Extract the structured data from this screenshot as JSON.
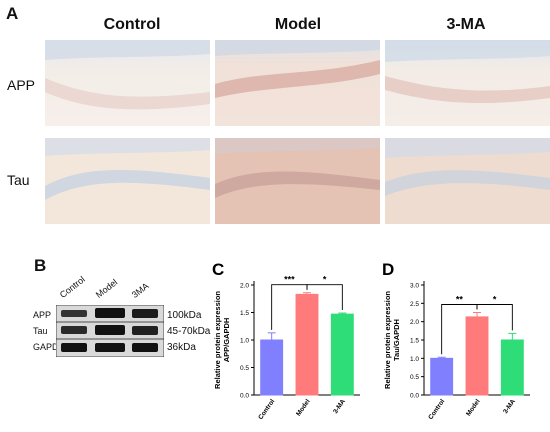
{
  "panel_a": {
    "letter": "A",
    "columns": [
      "Control",
      "Model",
      "3-MA"
    ],
    "rows": [
      "APP",
      "Tau"
    ]
  },
  "panel_b": {
    "letter": "B",
    "lanes": [
      "Control",
      "Model",
      "3MA"
    ],
    "bands": [
      {
        "name": "APP",
        "size": "100kDa"
      },
      {
        "name": "Tau",
        "size": "45-70kDa"
      },
      {
        "name": "GAPDH",
        "size": "36kDa"
      }
    ]
  },
  "chart_data": [
    {
      "letter": "C",
      "type": "bar",
      "categories": [
        "Control",
        "Model",
        "3-MA"
      ],
      "values": [
        1.0,
        1.83,
        1.47
      ],
      "errors": [
        0.13,
        0.03,
        0.02
      ],
      "colors": [
        "#8080ff",
        "#ff7b7b",
        "#2edc78"
      ],
      "ylabel": "Relative protein expression\nAPP/GAPDH",
      "ylim": [
        0,
        2.0
      ],
      "yticks": [
        "0.0",
        "0.5",
        "1.0",
        "1.5",
        "2.0"
      ],
      "significance": [
        {
          "from": 0,
          "to": 1,
          "label": "***"
        },
        {
          "from": 1,
          "to": 2,
          "label": "*"
        }
      ]
    },
    {
      "letter": "D",
      "type": "bar",
      "categories": [
        "Control",
        "Model",
        "3-MA"
      ],
      "values": [
        1.0,
        2.13,
        1.5
      ],
      "errors": [
        0.03,
        0.12,
        0.18
      ],
      "colors": [
        "#8080ff",
        "#ff7b7b",
        "#2edc78"
      ],
      "ylabel": "Relative protein expression\nTau/GAPDH",
      "ylim": [
        0,
        3.0
      ],
      "yticks": [
        "0.0",
        "0.5",
        "1.0",
        "1.5",
        "2.0",
        "2.5",
        "3.0"
      ],
      "significance": [
        {
          "from": 0,
          "to": 1,
          "label": "**"
        },
        {
          "from": 1,
          "to": 2,
          "label": "*"
        }
      ]
    }
  ]
}
